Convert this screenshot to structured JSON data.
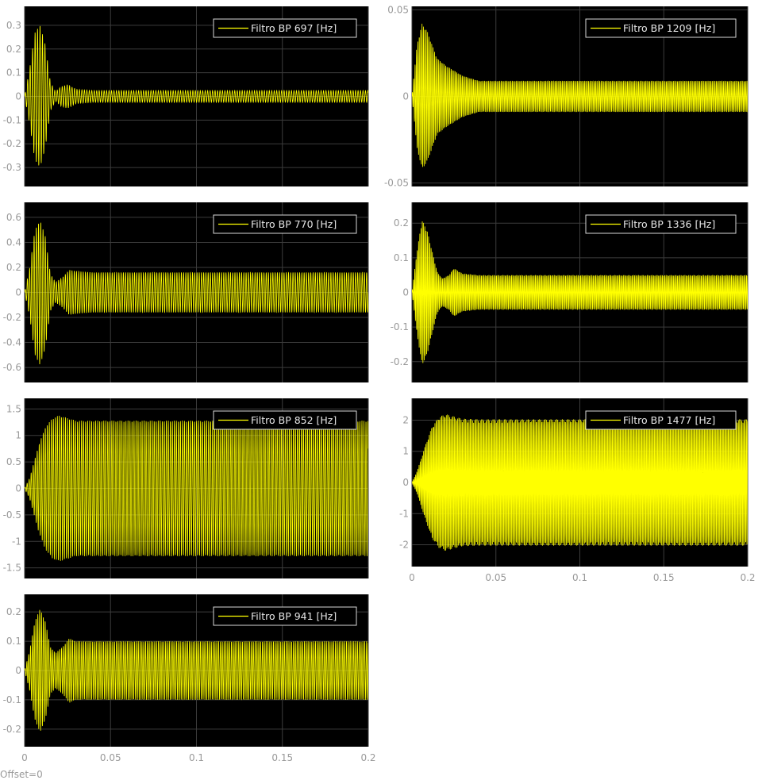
{
  "footer": {
    "offset_label": "Offset=0"
  },
  "colors": {
    "background": "#000000",
    "signal": "#ffff00",
    "grid": "#3c3c3c",
    "tick_text": "#999999",
    "legend_bg": "#000000",
    "legend_border": "#d9d9d9",
    "legend_text": "#e6e6e6"
  },
  "chart_data": [
    {
      "type": "line",
      "legend": "Filtro BP 697 [Hz]",
      "legend_loc": "top-right",
      "freq_hz": 697,
      "xlim": [
        0,
        0.2
      ],
      "ylim": [
        -0.38,
        0.38
      ],
      "yticks": [
        -0.3,
        -0.2,
        -0.1,
        0,
        0.1,
        0.2,
        0.3
      ],
      "yticklabels": [
        "-0.3",
        "-0.2",
        "-0.1",
        "0",
        "0.1",
        "0.2",
        "0.3"
      ],
      "xticks": [
        0,
        0.05,
        0.1,
        0.15,
        0.2
      ],
      "xticklabels": [],
      "envelope_t": [
        0,
        0.003,
        0.006,
        0.009,
        0.012,
        0.015,
        0.018,
        0.021,
        0.025,
        0.03,
        0.04,
        0.2
      ],
      "envelope_a": [
        0,
        0.12,
        0.27,
        0.3,
        0.22,
        0.06,
        0.02,
        0.04,
        0.05,
        0.03,
        0.025,
        0.025
      ],
      "grid": true
    },
    {
      "type": "line",
      "legend": "Filtro BP 1209 [Hz]",
      "legend_loc": "top-right",
      "freq_hz": 1209,
      "xlim": [
        0,
        0.2
      ],
      "ylim": [
        -0.052,
        0.052
      ],
      "yticks": [
        -0.05,
        0,
        0.05
      ],
      "yticklabels": [
        "-0.05",
        "0",
        "0.05"
      ],
      "xticks": [
        0,
        0.05,
        0.1,
        0.15,
        0.2
      ],
      "xticklabels": [],
      "envelope_t": [
        0,
        0.003,
        0.006,
        0.009,
        0.012,
        0.015,
        0.02,
        0.025,
        0.03,
        0.04,
        0.2
      ],
      "envelope_a": [
        0,
        0.03,
        0.042,
        0.038,
        0.03,
        0.022,
        0.018,
        0.015,
        0.012,
        0.009,
        0.009
      ],
      "grid": true
    },
    {
      "type": "line",
      "legend": "Filtro BP 770 [Hz]",
      "legend_loc": "top-right",
      "freq_hz": 770,
      "xlim": [
        0,
        0.2
      ],
      "ylim": [
        -0.72,
        0.72
      ],
      "yticks": [
        -0.6,
        -0.4,
        -0.2,
        0,
        0.2,
        0.4,
        0.6
      ],
      "yticklabels": [
        "-0.6",
        "-0.4",
        "-0.2",
        "0",
        "0.2",
        "0.4",
        "0.6"
      ],
      "xticks": [
        0,
        0.05,
        0.1,
        0.15,
        0.2
      ],
      "xticklabels": [],
      "envelope_t": [
        0,
        0.003,
        0.006,
        0.009,
        0.012,
        0.015,
        0.018,
        0.022,
        0.026,
        0.03,
        0.04,
        0.2
      ],
      "envelope_a": [
        0,
        0.2,
        0.5,
        0.58,
        0.45,
        0.15,
        0.08,
        0.12,
        0.18,
        0.17,
        0.16,
        0.16
      ],
      "grid": true
    },
    {
      "type": "line",
      "legend": "Filtro BP 1336 [Hz]",
      "legend_loc": "top-right",
      "freq_hz": 1336,
      "xlim": [
        0,
        0.2
      ],
      "ylim": [
        -0.26,
        0.26
      ],
      "yticks": [
        -0.2,
        -0.1,
        0,
        0.1,
        0.2
      ],
      "yticklabels": [
        "-0.2",
        "-0.1",
        "0",
        "0.1",
        "0.2"
      ],
      "xticks": [
        0,
        0.05,
        0.1,
        0.15,
        0.2
      ],
      "xticklabels": [],
      "envelope_t": [
        0,
        0.003,
        0.006,
        0.009,
        0.012,
        0.015,
        0.018,
        0.022,
        0.025,
        0.03,
        0.04,
        0.2
      ],
      "envelope_a": [
        0,
        0.12,
        0.21,
        0.18,
        0.12,
        0.06,
        0.04,
        0.05,
        0.07,
        0.055,
        0.05,
        0.05
      ],
      "grid": true
    },
    {
      "type": "line",
      "legend": "Filtro BP 852 [Hz]",
      "legend_loc": "top-right",
      "freq_hz": 852,
      "xlim": [
        0,
        0.2
      ],
      "ylim": [
        -1.7,
        1.7
      ],
      "yticks": [
        -1.5,
        -1,
        -0.5,
        0,
        0.5,
        1,
        1.5
      ],
      "yticklabels": [
        "-1.5",
        "-1",
        "-0.5",
        "0",
        "0.5",
        "1",
        "1.5"
      ],
      "xticks": [
        0,
        0.05,
        0.1,
        0.15,
        0.2
      ],
      "xticklabels": [],
      "envelope_t": [
        0,
        0.003,
        0.008,
        0.012,
        0.016,
        0.02,
        0.025,
        0.03,
        0.04,
        0.2
      ],
      "envelope_a": [
        0,
        0.2,
        0.8,
        1.15,
        1.32,
        1.38,
        1.33,
        1.28,
        1.28,
        1.28
      ],
      "grid": true
    },
    {
      "type": "line",
      "legend": "Filtro BP 1477 [Hz]",
      "legend_loc": "top-right",
      "freq_hz": 1477,
      "xlim": [
        0,
        0.2
      ],
      "ylim": [
        -2.7,
        2.7
      ],
      "yticks": [
        -2,
        -1,
        0,
        1,
        2
      ],
      "yticklabels": [
        "-2",
        "-1",
        "0",
        "1",
        "2"
      ],
      "xticks": [
        0,
        0.05,
        0.1,
        0.15,
        0.2
      ],
      "xticklabels": [
        "0",
        "0.05",
        "0.1",
        "0.15",
        "0.2"
      ],
      "envelope_t": [
        0,
        0.003,
        0.008,
        0.012,
        0.016,
        0.02,
        0.025,
        0.03,
        0.04,
        0.2
      ],
      "envelope_a": [
        0,
        0.35,
        1.2,
        1.8,
        2.1,
        2.2,
        2.12,
        2.05,
        2.03,
        2.03
      ],
      "grid": true
    },
    {
      "type": "line",
      "legend": "Filtro BP 941 [Hz]",
      "legend_loc": "top-right",
      "freq_hz": 941,
      "xlim": [
        0,
        0.2
      ],
      "ylim": [
        -0.26,
        0.26
      ],
      "yticks": [
        -0.2,
        -0.1,
        0,
        0.1,
        0.2
      ],
      "yticklabels": [
        "-0.2",
        "-0.1",
        "0",
        "0.1",
        "0.2"
      ],
      "xticks": [
        0,
        0.05,
        0.1,
        0.15,
        0.2
      ],
      "xticklabels": [
        "0",
        "0.05",
        "0.1",
        "0.15",
        "0.2"
      ],
      "envelope_t": [
        0,
        0.003,
        0.006,
        0.009,
        0.012,
        0.015,
        0.018,
        0.022,
        0.026,
        0.03,
        0.04,
        0.2
      ],
      "envelope_a": [
        0,
        0.07,
        0.17,
        0.21,
        0.17,
        0.08,
        0.06,
        0.08,
        0.11,
        0.1,
        0.1,
        0.1
      ],
      "grid": true
    }
  ]
}
